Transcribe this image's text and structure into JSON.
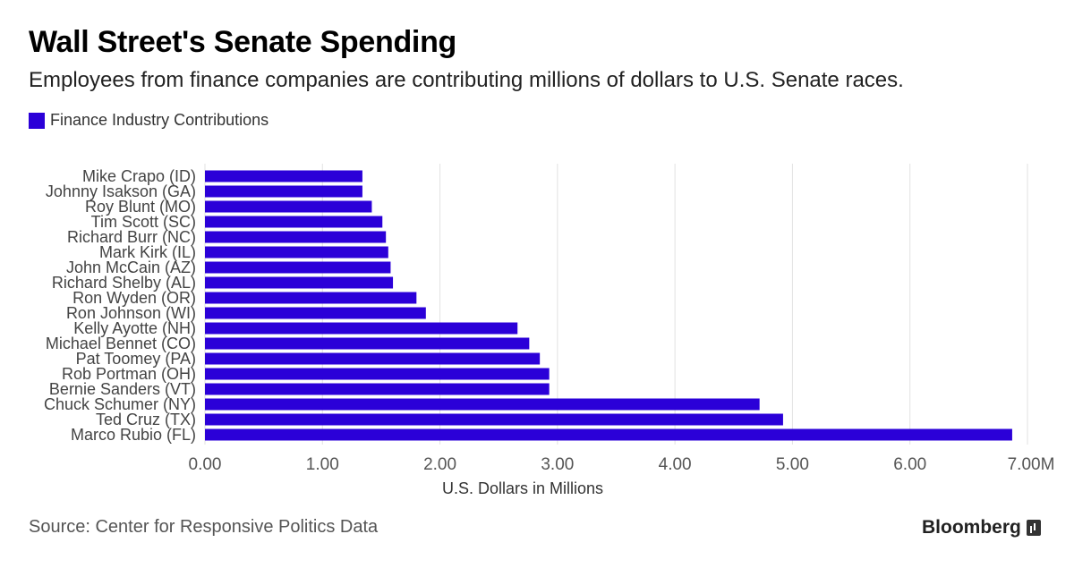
{
  "header": {
    "title": "Wall Street's Senate Spending",
    "subtitle": "Employees from finance companies are contributing millions of dollars to U.S. Senate races."
  },
  "footer": {
    "source": "Source: Center for Responsive Politics Data",
    "brand": "Bloomberg",
    "brand_icon": "bloomberg-terminal-icon"
  },
  "colors": {
    "bar": "#2b00d8",
    "grid": "#e2e2e2",
    "tick_text": "#555555"
  },
  "chart_data": {
    "type": "bar",
    "orientation": "horizontal",
    "title": "Wall Street's Senate Spending",
    "subtitle": "Employees from finance companies are contributing millions of dollars to U.S. Senate races.",
    "xlabel": "U.S. Dollars in Millions",
    "ylabel": "",
    "xlim": [
      0,
      7
    ],
    "x_ticks": [
      "0.00",
      "1.00",
      "2.00",
      "3.00",
      "4.00",
      "5.00",
      "6.00",
      "7.00M"
    ],
    "x_tick_values": [
      0,
      1,
      2,
      3,
      4,
      5,
      6,
      7
    ],
    "grid": true,
    "legend_position": "top-left",
    "series": [
      {
        "name": "Finance Industry Contributions",
        "values": [
          1.34,
          1.34,
          1.42,
          1.51,
          1.54,
          1.56,
          1.58,
          1.6,
          1.8,
          1.88,
          2.66,
          2.76,
          2.85,
          2.93,
          2.93,
          4.72,
          4.92,
          6.87
        ]
      }
    ],
    "categories": [
      "Mike Crapo (ID)",
      "Johnny Isakson (GA)",
      "Roy Blunt (MO)",
      "Tim Scott (SC)",
      "Richard Burr (NC)",
      "Mark Kirk (IL)",
      "John McCain (AZ)",
      "Richard Shelby (AL)",
      "Ron Wyden (OR)",
      "Ron Johnson (WI)",
      "Kelly Ayotte (NH)",
      "Michael Bennet (CO)",
      "Pat Toomey (PA)",
      "Rob Portman (OH)",
      "Bernie Sanders (VT)",
      "Chuck Schumer (NY)",
      "Ted Cruz (TX)",
      "Marco Rubio (FL)"
    ]
  }
}
